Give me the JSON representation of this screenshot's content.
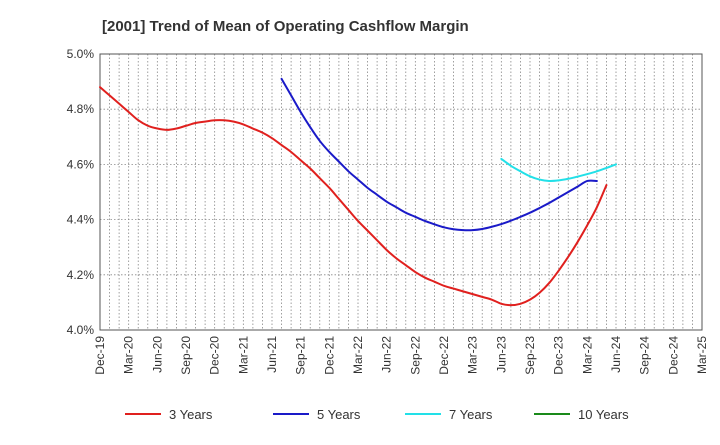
{
  "chart_data": {
    "type": "line",
    "title": "[2001]  Trend of Mean of Operating Cashflow Margin",
    "xlabel": "",
    "ylabel": "",
    "ylim": [
      4.0,
      5.0
    ],
    "yticks": [
      "4.0%",
      "4.2%",
      "4.4%",
      "4.6%",
      "4.8%",
      "5.0%"
    ],
    "ytick_values": [
      4.0,
      4.2,
      4.4,
      4.6,
      4.8,
      5.0
    ],
    "xticks": [
      "Dec-19",
      "Mar-20",
      "Jun-20",
      "Sep-20",
      "Dec-20",
      "Mar-21",
      "Jun-21",
      "Sep-21",
      "Dec-21",
      "Mar-22",
      "Jun-22",
      "Sep-22",
      "Dec-22",
      "Mar-23",
      "Jun-23",
      "Sep-23",
      "Dec-23",
      "Mar-24",
      "Jun-24",
      "Sep-24",
      "Dec-24",
      "Mar-25"
    ],
    "grid": true,
    "legend_position": "bottom",
    "series": [
      {
        "name": "3 Years",
        "color": "#e0201e",
        "start_index": 0,
        "values": [
          4.88,
          4.85,
          4.82,
          4.79,
          4.76,
          4.74,
          4.73,
          4.725,
          4.73,
          4.74,
          4.75,
          4.755,
          4.76,
          4.76,
          4.755,
          4.745,
          4.73,
          4.715,
          4.695,
          4.67,
          4.645,
          4.615,
          4.585,
          4.55,
          4.515,
          4.475,
          4.435,
          4.395,
          4.36,
          4.325,
          4.29,
          4.26,
          4.235,
          4.21,
          4.19,
          4.175,
          4.16,
          4.15,
          4.14,
          4.13,
          4.12,
          4.11,
          4.095,
          4.09,
          4.095,
          4.11,
          4.135,
          4.17,
          4.215,
          4.265,
          4.32,
          4.38,
          4.445,
          4.525
        ]
      },
      {
        "name": "5 Years",
        "color": "#1a1ac8",
        "start_index": 19,
        "values": [
          4.91,
          4.85,
          4.79,
          4.735,
          4.685,
          4.645,
          4.61,
          4.575,
          4.545,
          4.515,
          4.49,
          4.465,
          4.445,
          4.425,
          4.41,
          4.395,
          4.383,
          4.372,
          4.365,
          4.362,
          4.362,
          4.366,
          4.374,
          4.384,
          4.396,
          4.41,
          4.425,
          4.442,
          4.46,
          4.48,
          4.5,
          4.52,
          4.54,
          4.54
        ]
      },
      {
        "name": "7 Years",
        "color": "#22e0e8",
        "start_index": 42,
        "values": [
          4.62,
          4.595,
          4.575,
          4.557,
          4.545,
          4.54,
          4.542,
          4.548,
          4.556,
          4.565,
          4.575,
          4.587,
          4.6
        ]
      },
      {
        "name": "10 Years",
        "color": "#1a8a1a",
        "start_index": 0,
        "values": []
      }
    ]
  }
}
